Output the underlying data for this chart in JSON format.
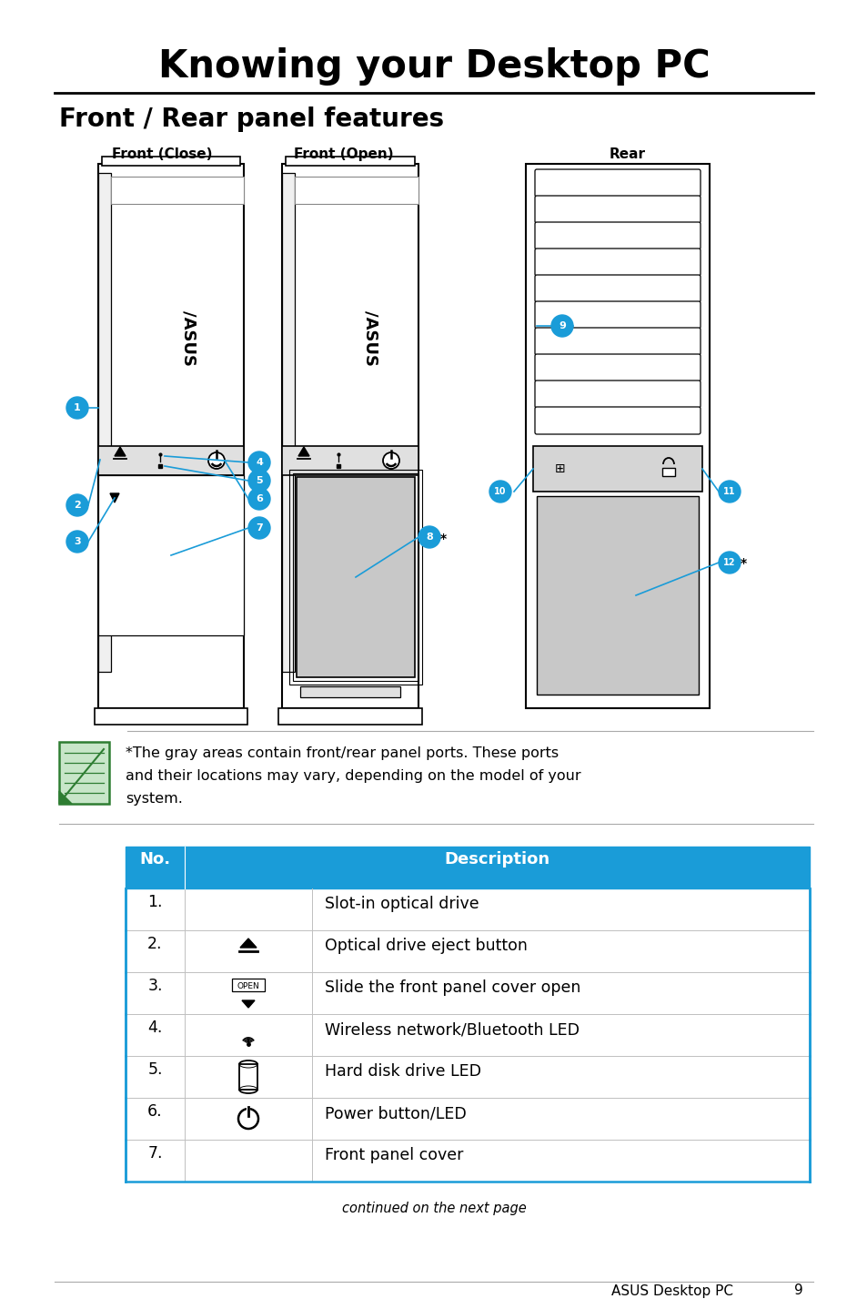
{
  "title": "Knowing your Desktop PC",
  "subtitle": "Front / Rear panel features",
  "bg_color": "#ffffff",
  "blue": "#1a9cd8",
  "label_front_close": "Front (Close)",
  "label_front_open": "Front (Open)",
  "label_rear": "Rear",
  "note_line1": "*The gray areas contain front/rear panel ports. These ports",
  "note_line2": "and their locations may vary, depending on the model of your",
  "note_line3": "system.",
  "table_header_no": "No.",
  "table_header_desc": "Description",
  "table_rows": [
    {
      "num": "1.",
      "desc": "Slot-in optical drive"
    },
    {
      "num": "2.",
      "desc": "Optical drive eject button"
    },
    {
      "num": "3.",
      "desc": "Slide the front panel cover open"
    },
    {
      "num": "4.",
      "desc": "Wireless network/Bluetooth LED"
    },
    {
      "num": "5.",
      "desc": "Hard disk drive LED"
    },
    {
      "num": "6.",
      "desc": "Power button/LED"
    },
    {
      "num": "7.",
      "desc": "Front panel cover"
    }
  ],
  "continued_text": "continued on the next page",
  "footer_text": "ASUS Desktop PC",
  "page_num": "9",
  "gray_panel": "#c8c8c8",
  "gray_light": "#e8e8e8",
  "green_dark": "#2e7d32",
  "green_light": "#c8e6c9"
}
